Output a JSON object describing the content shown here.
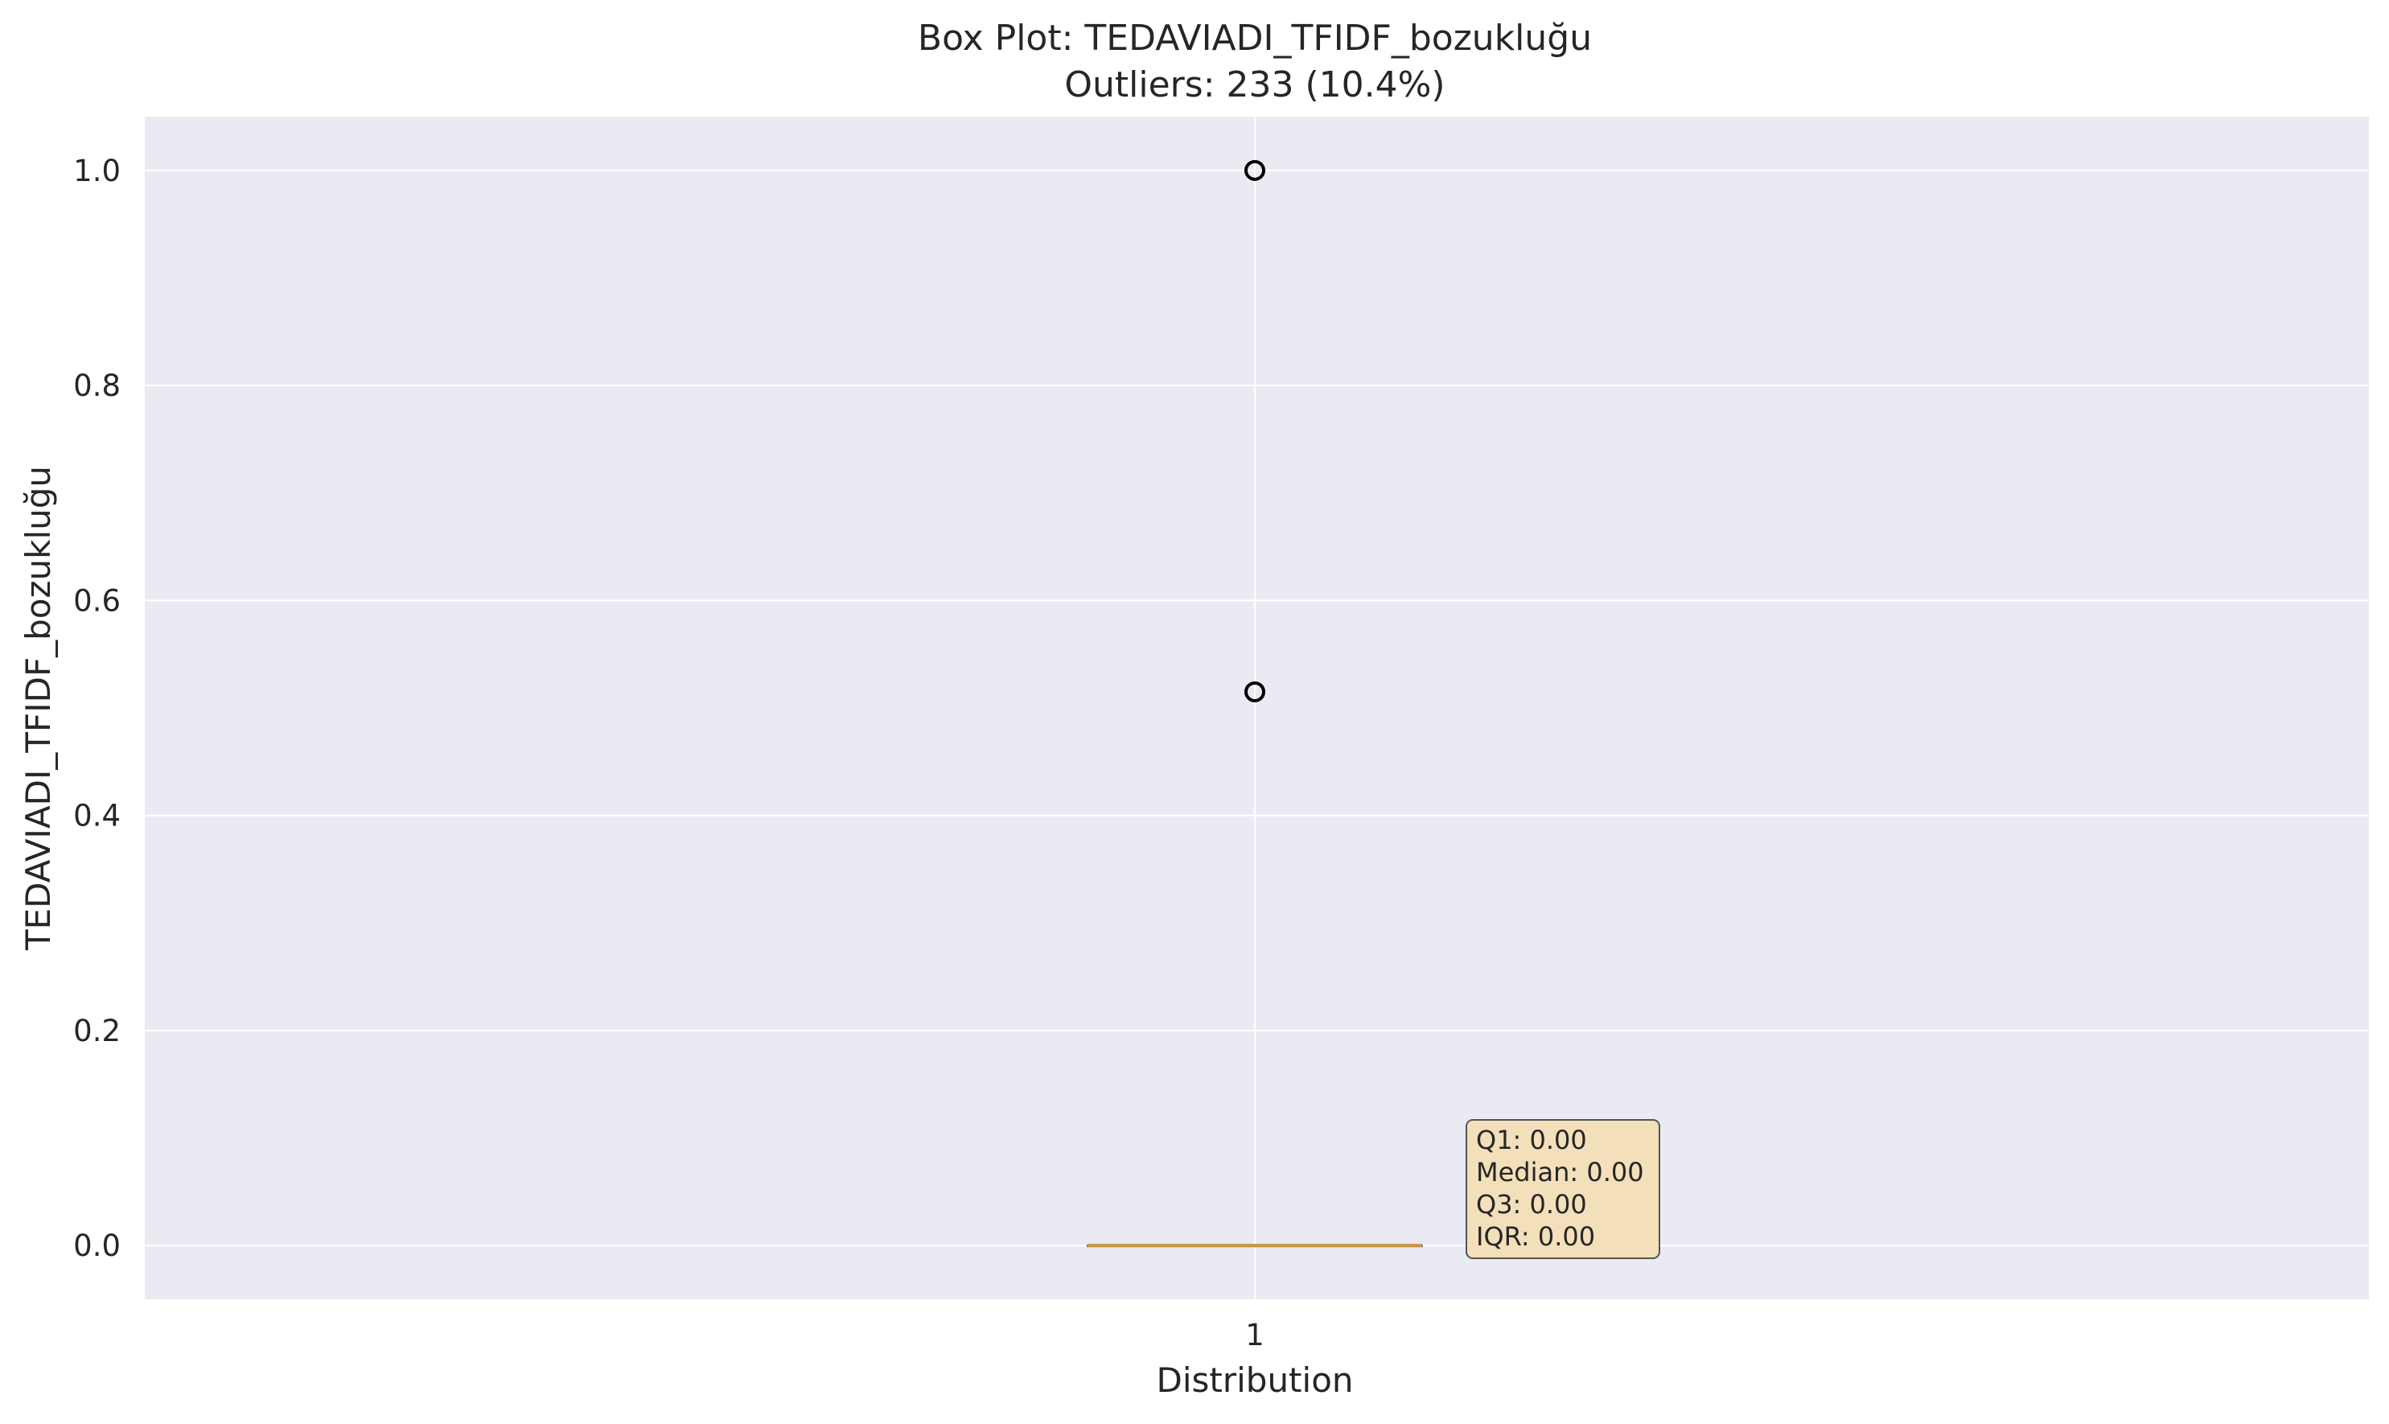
{
  "chart_data": {
    "type": "box",
    "title": "Box Plot: TEDAVIADI_TFIDF_bozukluğu",
    "subtitle": "Outliers: 233 (10.4%)",
    "xlabel": "Distribution",
    "ylabel": "TEDAVIADI_TFIDF_bozukluğu",
    "categories": [
      "1"
    ],
    "ylim": [
      -0.05,
      1.05
    ],
    "yticks": [
      0.0,
      0.2,
      0.4,
      0.6,
      0.8,
      1.0
    ],
    "ytick_labels": [
      "0.0",
      "0.2",
      "0.4",
      "0.6",
      "0.8",
      "1.0"
    ],
    "grid": true,
    "box": {
      "q1": 0.0,
      "median": 0.0,
      "q3": 0.0,
      "whisker_low": 0.0,
      "whisker_high": 0.0
    },
    "outliers": [
      1.0,
      0.515
    ],
    "stats_box": {
      "lines": [
        "Q1: 0.00",
        "Median: 0.00",
        "Q3: 0.00",
        "IQR: 0.00"
      ]
    },
    "colors": {
      "plot_background": "#eaeaf2",
      "grid": "#ffffff",
      "median": "#c8963e",
      "outlier_edge": "#000000",
      "stats_box_fill": "#f5deb3"
    }
  }
}
